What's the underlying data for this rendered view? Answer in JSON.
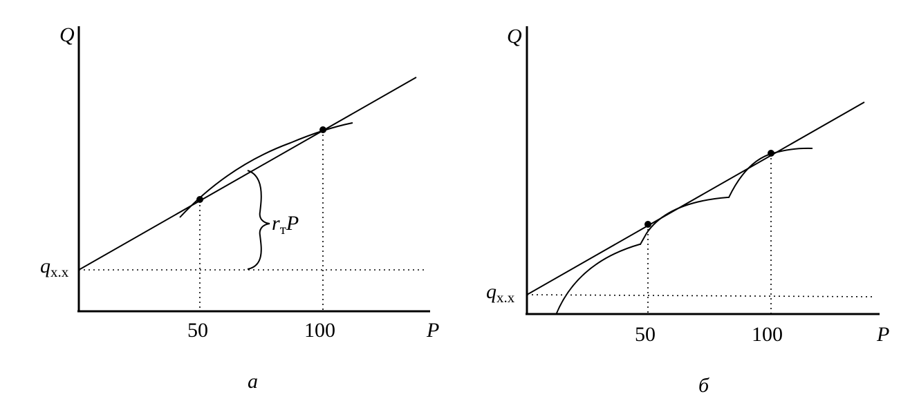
{
  "chart_data": [
    {
      "type": "line",
      "panel_label": "а",
      "ylabel": "Q",
      "xlabel": "P",
      "x_ticks": [
        "50",
        "100"
      ],
      "intercept_label": {
        "symbol": "q",
        "subscript": "х.х"
      },
      "annotation": {
        "symbol": "r",
        "subscript": "т",
        "tail": "P"
      },
      "series": [
        {
          "kind": "straight_line",
          "intercept": 0,
          "slope": 0.46
        },
        {
          "kind": "curve",
          "description_points": [
            [
              42,
              19
            ],
            [
              50,
              23
            ],
            [
              75,
              34
            ],
            [
              100,
              46
            ],
            [
              113,
              48
            ]
          ]
        }
      ],
      "marked_points": [
        [
          50,
          23
        ],
        [
          100,
          46
        ]
      ]
    },
    {
      "type": "line",
      "panel_label": "б",
      "ylabel": "Q",
      "xlabel": "P",
      "x_ticks": [
        "50",
        "100"
      ],
      "intercept_label": {
        "symbol": "q",
        "subscript": "х.х"
      },
      "series": [
        {
          "kind": "straight_line",
          "intercept": 0,
          "slope": 0.46
        },
        {
          "kind": "scalloped_curve",
          "description_points": [
            [
              13,
              -2
            ],
            [
              28,
              13
            ],
            [
              47,
              16
            ],
            [
              58,
              22
            ],
            [
              72,
              30
            ],
            [
              83,
              31
            ],
            [
              100,
              46
            ],
            [
              117,
              48
            ]
          ]
        }
      ],
      "marked_points": [
        [
          50,
          23
        ],
        [
          100,
          46
        ]
      ]
    }
  ]
}
